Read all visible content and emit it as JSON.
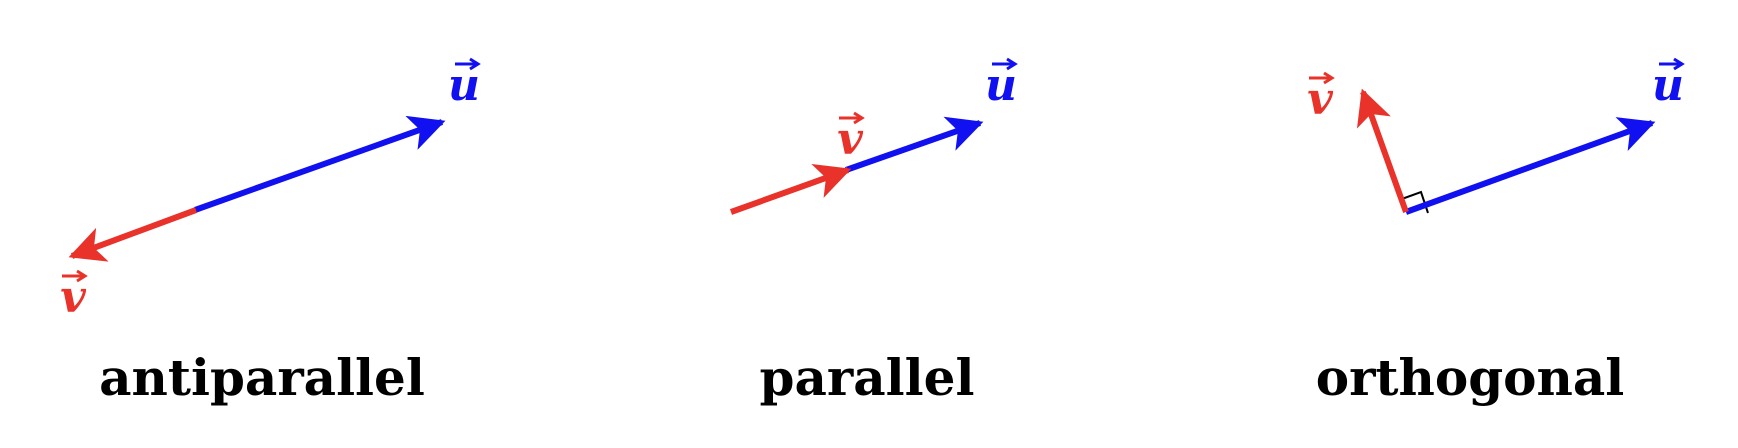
{
  "colors": {
    "u": "#1010f0",
    "v": "#e8322a",
    "text": "#000000"
  },
  "panels": [
    {
      "id": "antiparallel",
      "caption": "antiparallel",
      "u_label": "u",
      "v_label": "v"
    },
    {
      "id": "parallel",
      "caption": "parallel",
      "u_label": "u",
      "v_label": "v"
    },
    {
      "id": "orthogonal",
      "caption": "orthogonal",
      "u_label": "u",
      "v_label": "v"
    }
  ]
}
